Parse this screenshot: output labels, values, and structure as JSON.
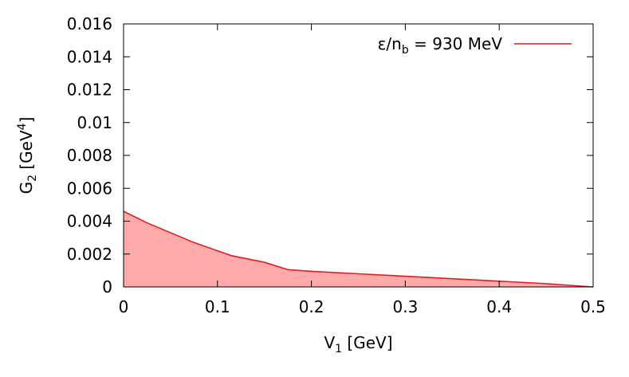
{
  "chart_data": {
    "type": "area",
    "x_title": {
      "main": "V",
      "sub": "1",
      "unit": " [GeV]"
    },
    "y_title": {
      "main": "G",
      "sub": "2",
      "unit_open": " [GeV",
      "sup": "4",
      "unit_close": "]"
    },
    "xlim": [
      0,
      0.5
    ],
    "ylim": [
      0,
      0.016
    ],
    "x_ticks": [
      {
        "value": 0,
        "label": "0"
      },
      {
        "value": 0.1,
        "label": "0.1"
      },
      {
        "value": 0.2,
        "label": "0.2"
      },
      {
        "value": 0.3,
        "label": "0.3"
      },
      {
        "value": 0.4,
        "label": "0.4"
      },
      {
        "value": 0.5,
        "label": "0.5"
      }
    ],
    "y_ticks": [
      {
        "value": 0,
        "label": "0"
      },
      {
        "value": 0.002,
        "label": "0.002"
      },
      {
        "value": 0.004,
        "label": "0.004"
      },
      {
        "value": 0.006,
        "label": "0.006"
      },
      {
        "value": 0.008,
        "label": "0.008"
      },
      {
        "value": 0.01,
        "label": "0.01"
      },
      {
        "value": 0.012,
        "label": "0.012"
      },
      {
        "value": 0.014,
        "label": "0.014"
      },
      {
        "value": 0.016,
        "label": "0.016"
      }
    ],
    "grid": false,
    "legend_position": "top-right",
    "series": [
      {
        "legend": {
          "pre": "ε/n",
          "sub": "b",
          "post": " = 930 MeV"
        },
        "line_color": "#e41a1c",
        "fill_color": "#ffaaaa",
        "x": [
          0,
          0.025,
          0.05,
          0.075,
          0.1,
          0.115,
          0.15,
          0.175,
          0.2,
          0.25,
          0.3,
          0.35,
          0.4,
          0.45,
          0.5
        ],
        "y": [
          0.0046,
          0.0039,
          0.0033,
          0.0027,
          0.0022,
          0.0019,
          0.0015,
          0.00105,
          0.00095,
          0.0008,
          0.00065,
          0.0005,
          0.00035,
          0.0002,
          0
        ]
      }
    ]
  }
}
